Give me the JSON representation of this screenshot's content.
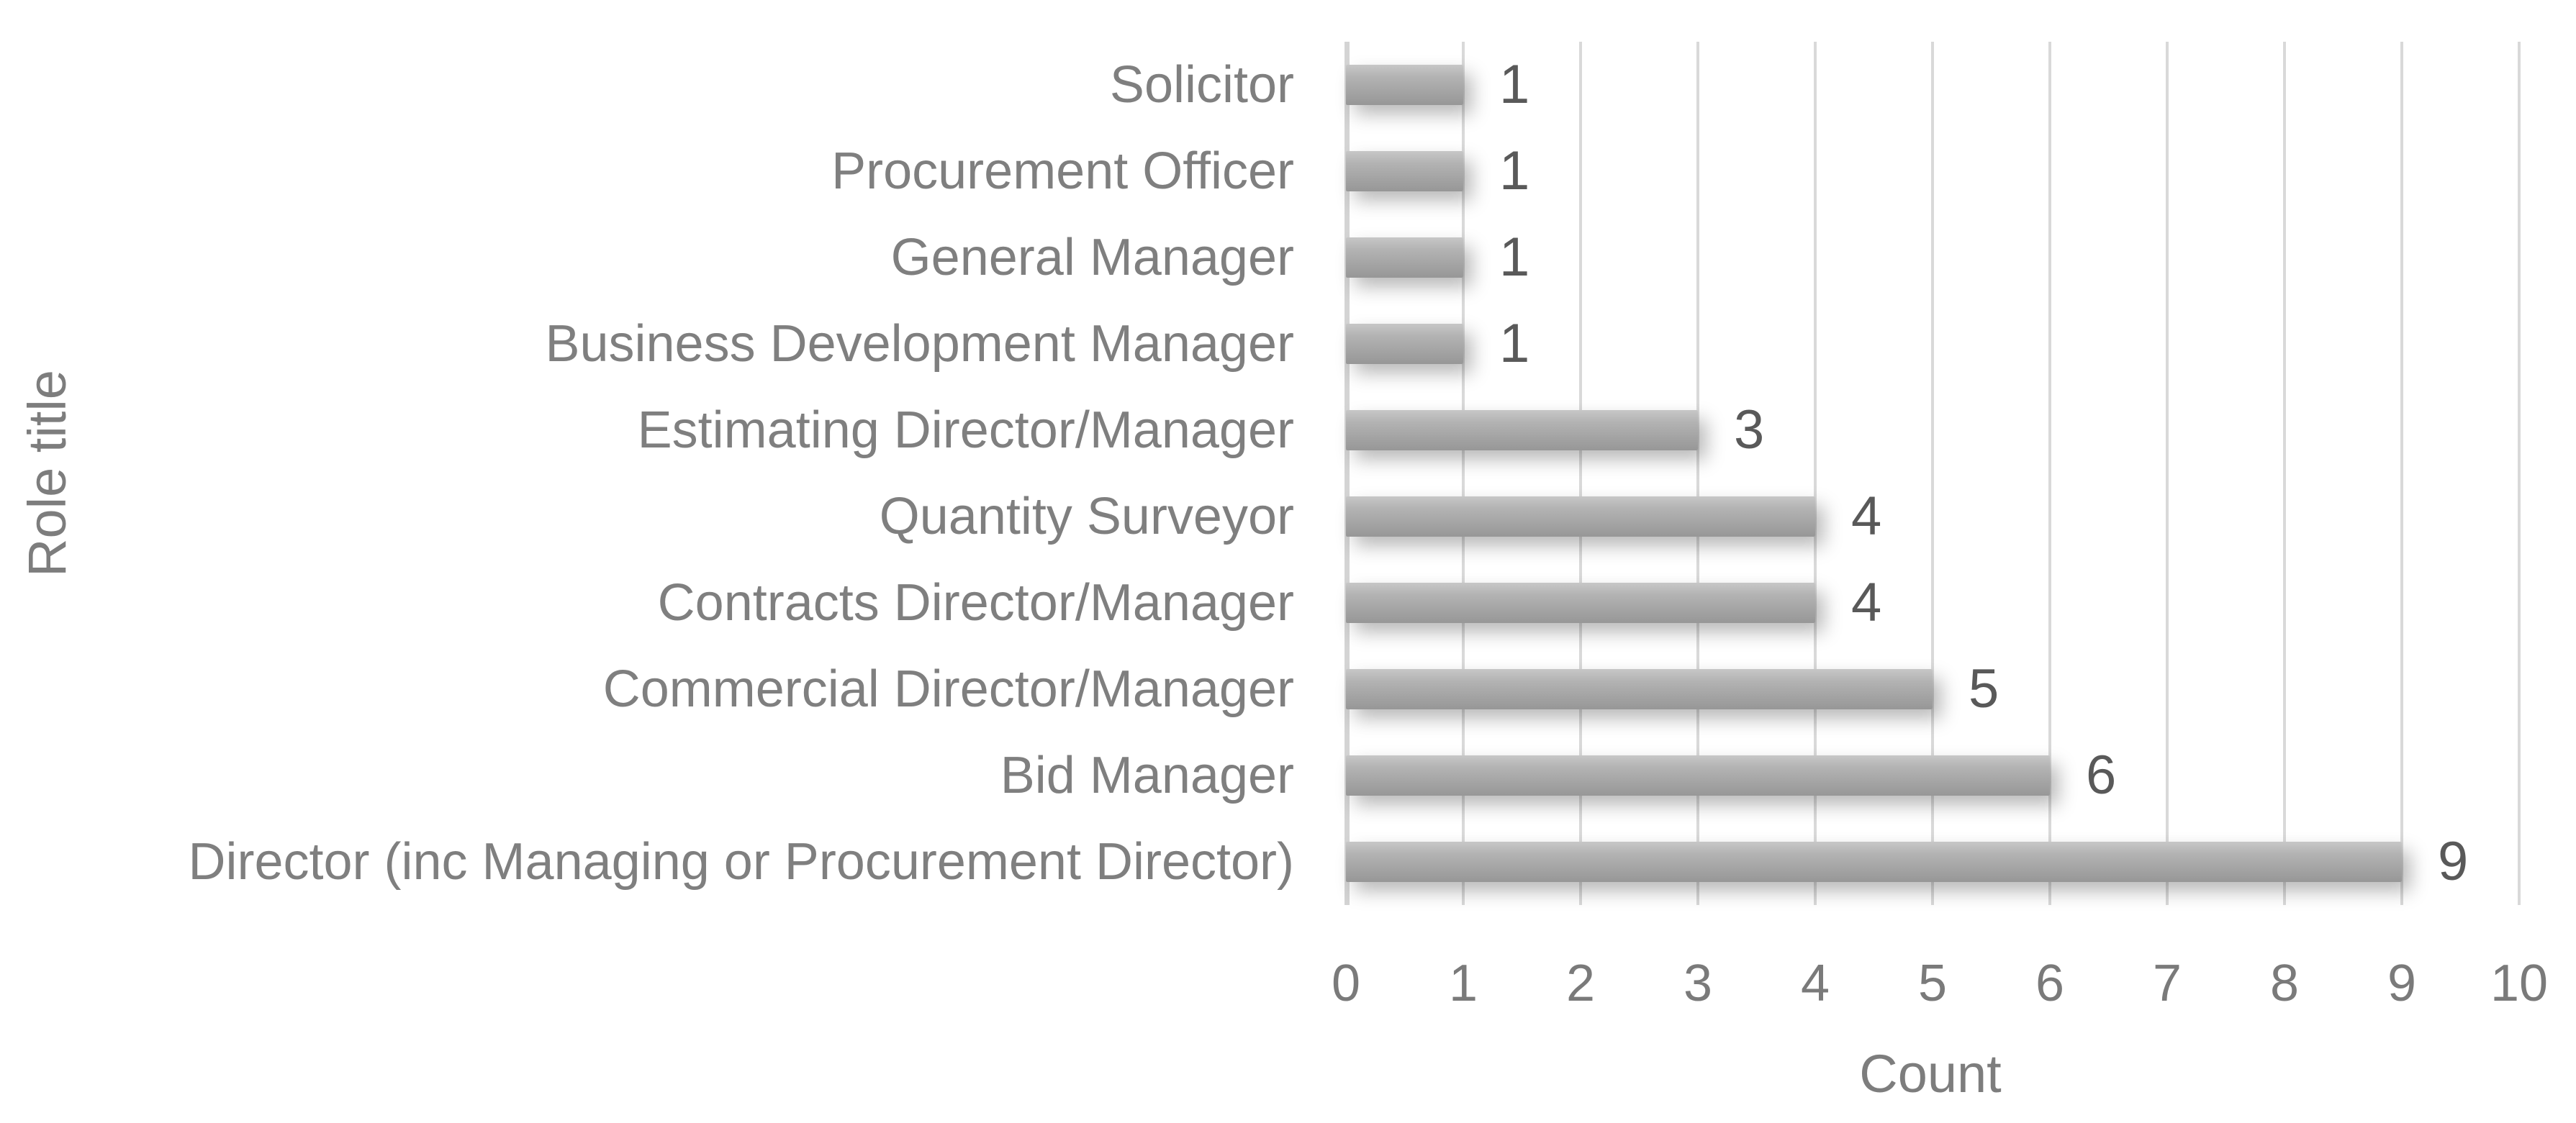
{
  "chart_data": {
    "type": "bar",
    "orientation": "horizontal",
    "title": "",
    "xlabel": "Count",
    "ylabel": "Role title",
    "xlim": [
      0,
      10
    ],
    "x_ticks": [
      "0",
      "1",
      "2",
      "3",
      "4",
      "5",
      "6",
      "7",
      "8",
      "9",
      "10"
    ],
    "grid": "vertical-gridlines-on",
    "legend": "none",
    "categories": [
      "Solicitor",
      "Procurement Officer",
      "General Manager",
      "Business Development Manager",
      "Estimating Director/Manager",
      "Quantity Surveyor",
      "Contracts Director/Manager",
      "Commercial Director/Manager",
      "Bid Manager",
      "Director (inc Managing or Procurement Director)"
    ],
    "values": [
      1,
      1,
      1,
      1,
      3,
      4,
      4,
      5,
      6,
      9
    ],
    "data_labels": [
      "1",
      "1",
      "1",
      "1",
      "3",
      "4",
      "4",
      "5",
      "6",
      "9"
    ],
    "colors": {
      "bar_fill": "#a6a6a6",
      "bar_gradient_top": "#c7c7c7",
      "bar_gradient_bottom": "#979797",
      "gridline": "#d9d9d9",
      "category_label_text": "#7f7f7f",
      "tick_label_text": "#7a7a7a",
      "axis_title_text": "#7d7d7d",
      "value_label_text": "#595959",
      "background": "#ffffff"
    }
  }
}
